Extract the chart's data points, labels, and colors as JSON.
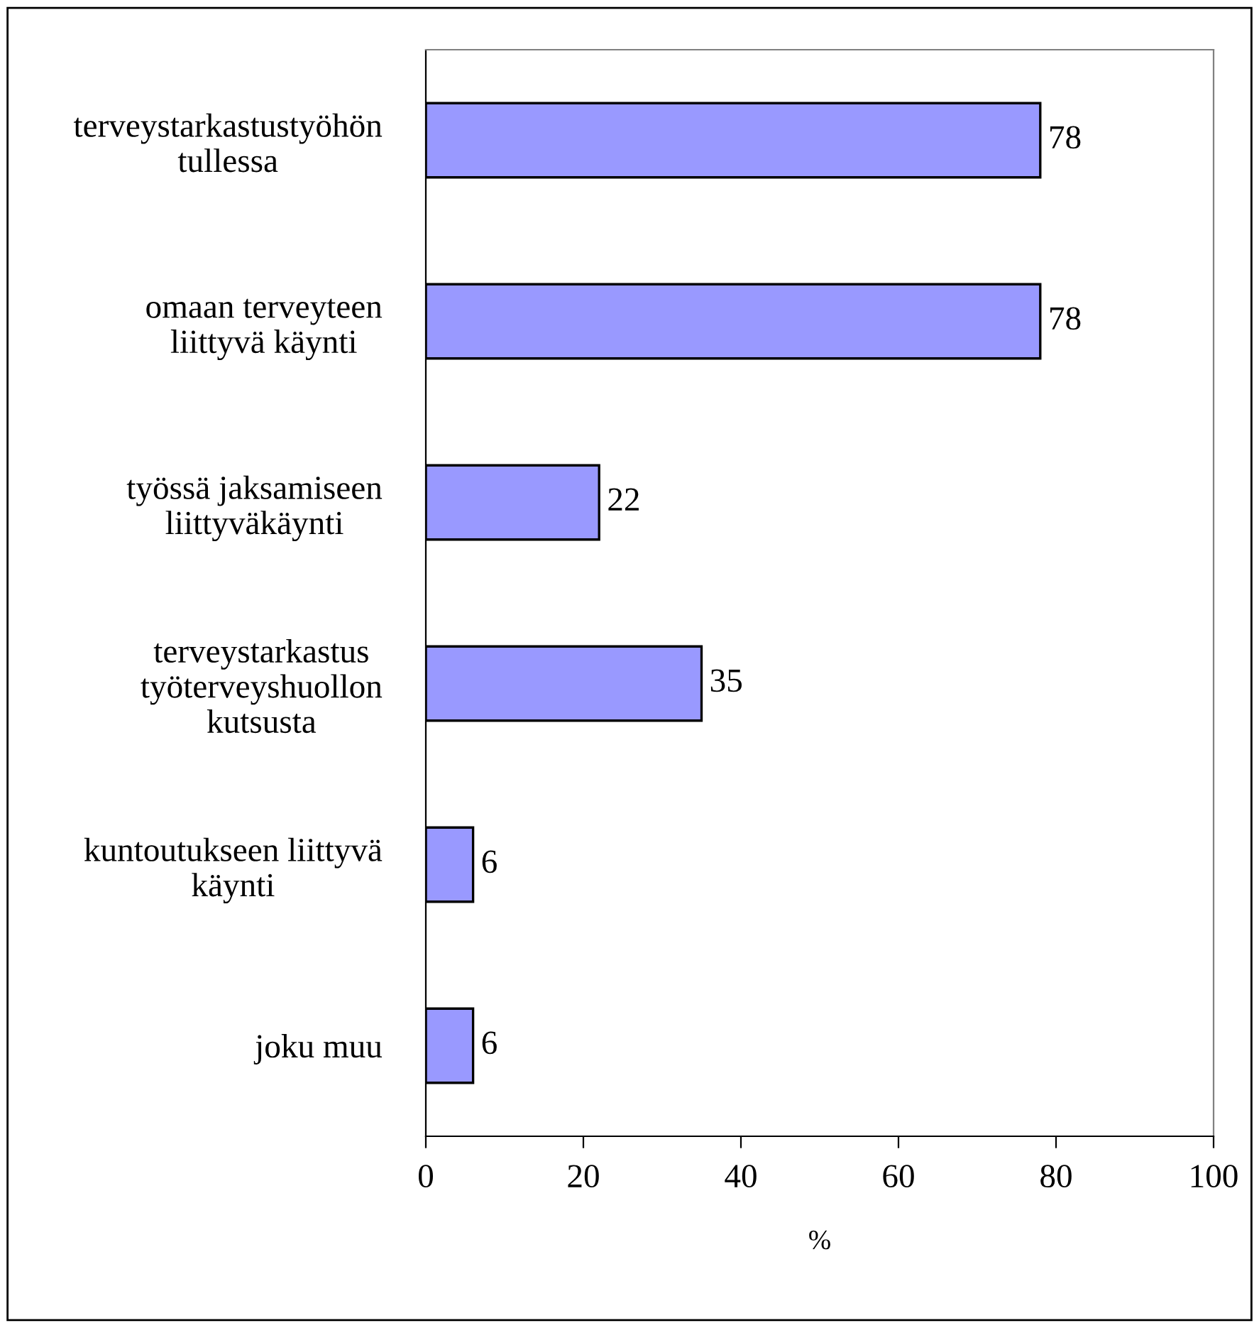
{
  "chart_data": {
    "type": "bar",
    "orientation": "horizontal",
    "categories": [
      "terveystarkastustyöhön\ntullessa",
      "omaan terveyteen\nliittyvä käynti",
      "työssä jaksamiseen\nliittyväkäynti",
      "terveystarkastus\ntyöterveyshuollon\nkutsusta",
      "kuntoutukseen liittyvä\nkäynti",
      "joku muu"
    ],
    "values": [
      78,
      78,
      22,
      35,
      6,
      6
    ],
    "color": "#9999ff",
    "xlim": [
      0,
      100
    ],
    "xticks": [
      0,
      20,
      40,
      60,
      80,
      100
    ],
    "xlabel": "%",
    "data_labels": true,
    "grid": false,
    "legend": false
  }
}
